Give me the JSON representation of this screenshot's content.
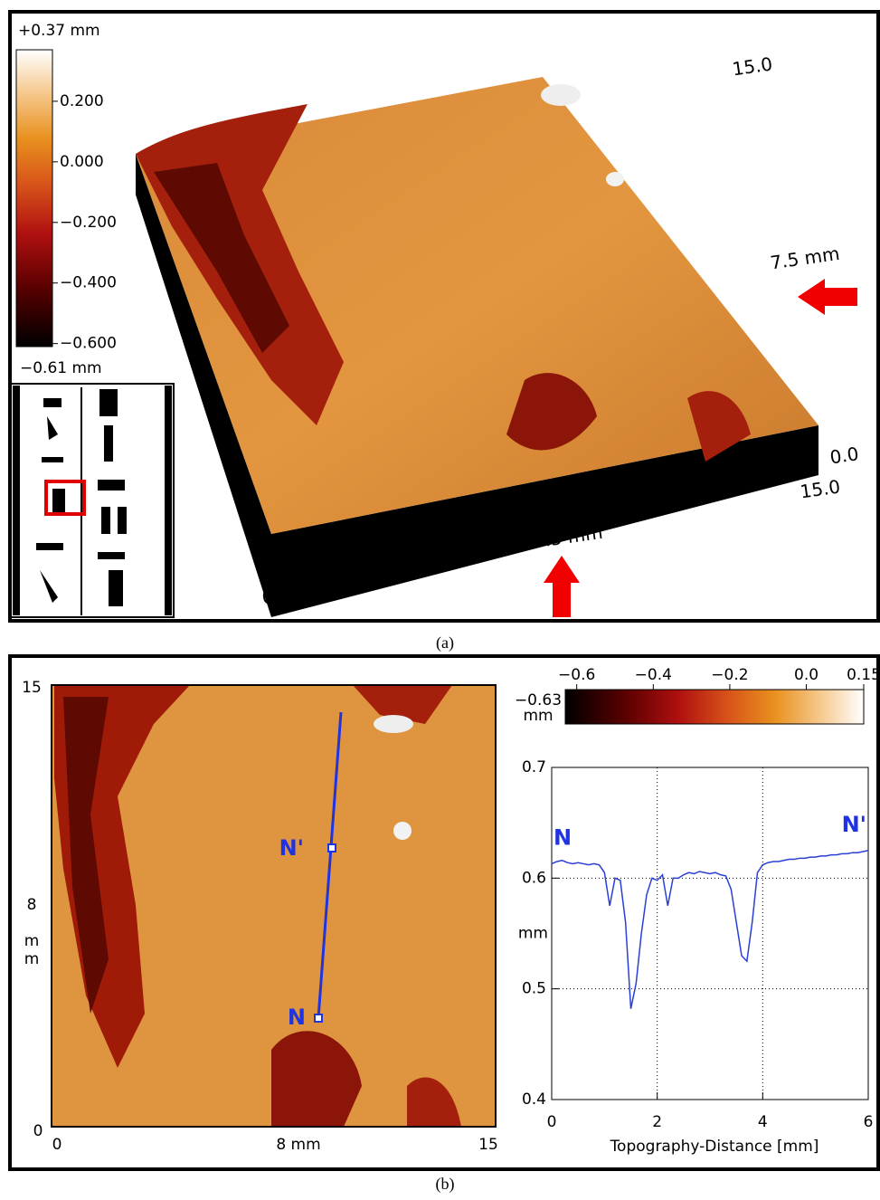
{
  "panel_a": {
    "caption": "(a)",
    "colorbar": {
      "max_label": "+0.37 mm",
      "min_label": "−0.61 mm",
      "lim": [
        -0.61,
        0.37
      ],
      "ticks": [
        {
          "value": 0.2,
          "label": "0.200"
        },
        {
          "value": 0.0,
          "label": "0.000"
        },
        {
          "value": -0.2,
          "label": "−0.200"
        },
        {
          "value": -0.4,
          "label": "−0.400"
        },
        {
          "value": -0.6,
          "label": "−0.600"
        }
      ]
    },
    "axis_labels": [
      "15.0",
      "7.5 mm",
      "0.0",
      "15.0",
      "7.5 mm",
      "0.0"
    ]
  },
  "panel_b": {
    "caption": "(b)",
    "map_axis": {
      "y_top": "15",
      "y_mid": "8 mm",
      "y_bottom": "0",
      "x_left": "0",
      "x_mid": "8 mm",
      "x_right": "15"
    },
    "profile_markers": {
      "start": "N",
      "end": "N'"
    },
    "colorbar": {
      "min_label": "−0.63",
      "unit": "mm",
      "lim": [
        -0.63,
        0.15
      ],
      "ticks": [
        {
          "value": -0.6,
          "label": "−0.6"
        },
        {
          "value": -0.4,
          "label": "−0.4"
        },
        {
          "value": -0.2,
          "label": "−0.2"
        },
        {
          "value": 0.0,
          "label": "0.0"
        },
        0.15
      ]
    }
  },
  "chart_data": {
    "type": "line",
    "xlabel": "Topography-Distance [mm]",
    "ylabel": "mm",
    "annotations": [
      "N",
      "N'"
    ],
    "color": "#2a3fd6",
    "x": [
      0.0,
      0.1,
      0.2,
      0.3,
      0.4,
      0.5,
      0.6,
      0.7,
      0.8,
      0.9,
      1.0,
      1.1,
      1.2,
      1.3,
      1.4,
      1.5,
      1.6,
      1.7,
      1.8,
      1.9,
      2.0,
      2.1,
      2.2,
      2.3,
      2.4,
      2.5,
      2.6,
      2.7,
      2.8,
      2.9,
      3.0,
      3.1,
      3.2,
      3.3,
      3.4,
      3.5,
      3.6,
      3.7,
      3.8,
      3.9,
      4.0,
      4.1,
      4.2,
      4.3,
      4.4,
      4.5,
      4.6,
      4.7,
      4.8,
      4.9,
      5.0,
      5.1,
      5.2,
      5.3,
      5.4,
      5.5,
      5.6,
      5.7,
      5.8,
      5.9,
      6.0
    ],
    "values": [
      0.613,
      0.615,
      0.616,
      0.614,
      0.613,
      0.614,
      0.613,
      0.612,
      0.613,
      0.612,
      0.605,
      0.575,
      0.6,
      0.598,
      0.56,
      0.482,
      0.505,
      0.55,
      0.585,
      0.6,
      0.598,
      0.603,
      0.575,
      0.6,
      0.6,
      0.603,
      0.605,
      0.604,
      0.606,
      0.605,
      0.604,
      0.605,
      0.603,
      0.602,
      0.59,
      0.56,
      0.53,
      0.525,
      0.56,
      0.605,
      0.612,
      0.614,
      0.615,
      0.615,
      0.616,
      0.617,
      0.617,
      0.618,
      0.618,
      0.619,
      0.619,
      0.62,
      0.62,
      0.621,
      0.621,
      0.622,
      0.622,
      0.623,
      0.623,
      0.624,
      0.625
    ],
    "xlim": [
      0,
      6
    ],
    "ylim": [
      0.4,
      0.7
    ],
    "xticks": [
      0,
      2,
      4,
      6
    ],
    "yticks": [
      0.4,
      0.5,
      0.6,
      0.7
    ],
    "grid": true
  }
}
